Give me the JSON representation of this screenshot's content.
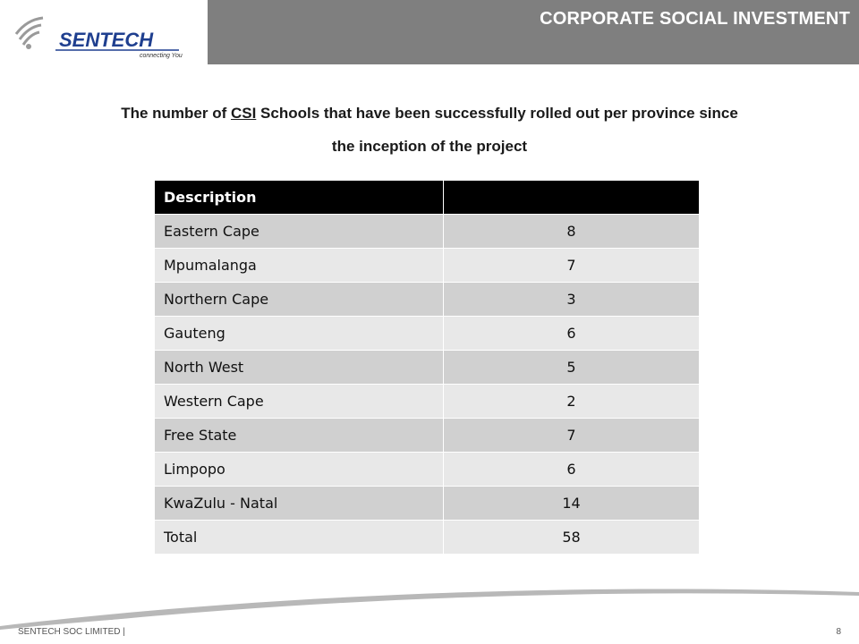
{
  "header": {
    "title": "CORPORATE SOCIAL INVESTMENT"
  },
  "logo": {
    "name": "SENTECH",
    "tagline": "connecting You"
  },
  "subtitle": {
    "pre": "The number of ",
    "underlined": "CSI",
    "post": " Schools that have been successfully rolled out per province since",
    "line2": "the inception of the project"
  },
  "table": {
    "header": [
      "Description",
      ""
    ],
    "rows": [
      [
        "Eastern Cape",
        "8"
      ],
      [
        "Mpumalanga",
        "7"
      ],
      [
        "Northern Cape",
        "3"
      ],
      [
        "Gauteng",
        "6"
      ],
      [
        "North West",
        "5"
      ],
      [
        "Western Cape",
        "2"
      ],
      [
        "Free State",
        "7"
      ],
      [
        "Limpopo",
        "6"
      ],
      [
        "KwaZulu - Natal",
        "14"
      ],
      [
        "Total",
        "58"
      ]
    ]
  },
  "footer": {
    "company": "SENTECH SOC LIMITED |",
    "page": "8"
  },
  "colors": {
    "header_bar": "#7f7f7f",
    "logo_blue": "#1f3f8f",
    "table_header": "#000000",
    "row_dark": "#d0d0d0",
    "row_light": "#e8e8e8"
  }
}
